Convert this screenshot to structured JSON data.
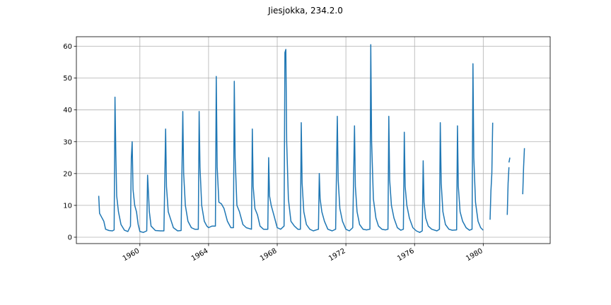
{
  "chart_data": {
    "type": "line",
    "title": "Jiesjokka, 234.2.0",
    "xlabel": "",
    "ylabel": "",
    "x_ticks": [
      "1960",
      "1964",
      "1968",
      "1972",
      "1976",
      "1980"
    ],
    "y_ticks": [
      "0",
      "10",
      "20",
      "30",
      "40",
      "50",
      "60"
    ],
    "xlim": [
      1956.3,
      1983.9
    ],
    "ylim": [
      -2,
      63
    ],
    "grid": true,
    "line_color": "#1f77b4",
    "series": [
      {
        "segments": [
          [
            [
              1957.6,
              13
            ],
            [
              1957.65,
              7.5
            ],
            [
              1957.75,
              6.5
            ],
            [
              1957.9,
              5.0
            ],
            [
              1958.0,
              2.5
            ],
            [
              1958.2,
              2.1
            ],
            [
              1958.4,
              2.0
            ],
            [
              1958.5,
              2.3
            ],
            [
              1958.55,
              44
            ],
            [
              1958.6,
              26
            ],
            [
              1958.65,
              13
            ],
            [
              1958.75,
              8
            ],
            [
              1958.9,
              4
            ],
            [
              1959.1,
              2.2
            ],
            [
              1959.3,
              1.8
            ],
            [
              1959.45,
              3.5
            ],
            [
              1959.5,
              25
            ],
            [
              1959.55,
              30
            ],
            [
              1959.6,
              15
            ],
            [
              1959.7,
              10
            ],
            [
              1959.8,
              8
            ],
            [
              1959.9,
              4
            ],
            [
              1960.0,
              1.8
            ],
            [
              1960.2,
              1.5
            ],
            [
              1960.4,
              2.0
            ],
            [
              1960.45,
              19.5
            ],
            [
              1960.55,
              8
            ],
            [
              1960.65,
              3.5
            ],
            [
              1960.9,
              2.1
            ],
            [
              1961.2,
              2.0
            ],
            [
              1961.4,
              2.0
            ],
            [
              1961.5,
              34
            ],
            [
              1961.55,
              16
            ],
            [
              1961.65,
              8
            ],
            [
              1961.8,
              5.5
            ],
            [
              1961.95,
              3
            ],
            [
              1962.2,
              2.0
            ],
            [
              1962.4,
              2.1
            ],
            [
              1962.5,
              39.5
            ],
            [
              1962.55,
              20
            ],
            [
              1962.65,
              10
            ],
            [
              1962.8,
              5
            ],
            [
              1963.0,
              3
            ],
            [
              1963.2,
              2.5
            ],
            [
              1963.4,
              2.5
            ],
            [
              1963.45,
              39.5
            ],
            [
              1963.5,
              22
            ],
            [
              1963.6,
              10
            ],
            [
              1963.75,
              5
            ],
            [
              1963.9,
              3.5
            ],
            [
              1964.0,
              3
            ],
            [
              1964.2,
              3.5
            ],
            [
              1964.4,
              3.5
            ],
            [
              1964.45,
              50.5
            ],
            [
              1964.5,
              22
            ],
            [
              1964.6,
              11
            ],
            [
              1964.75,
              10.5
            ],
            [
              1964.9,
              9
            ],
            [
              1965.1,
              5
            ],
            [
              1965.3,
              3
            ],
            [
              1965.45,
              3
            ],
            [
              1965.5,
              49
            ],
            [
              1965.55,
              25
            ],
            [
              1965.65,
              10
            ],
            [
              1965.8,
              8
            ],
            [
              1966.0,
              4
            ],
            [
              1966.2,
              3
            ],
            [
              1966.5,
              2.5
            ],
            [
              1966.55,
              34
            ],
            [
              1966.6,
              16
            ],
            [
              1966.7,
              9
            ],
            [
              1966.85,
              7
            ],
            [
              1967.0,
              3.5
            ],
            [
              1967.2,
              2.5
            ],
            [
              1967.45,
              2.5
            ],
            [
              1967.5,
              25
            ],
            [
              1967.55,
              13
            ],
            [
              1967.65,
              10
            ],
            [
              1967.8,
              7
            ],
            [
              1968.0,
              3
            ],
            [
              1968.2,
              2.5
            ],
            [
              1968.4,
              3.5
            ],
            [
              1968.45,
              58
            ],
            [
              1968.5,
              59
            ],
            [
              1968.55,
              30
            ],
            [
              1968.65,
              12
            ],
            [
              1968.8,
              5
            ],
            [
              1969.0,
              3.5
            ],
            [
              1969.2,
              2.5
            ],
            [
              1969.35,
              2.5
            ],
            [
              1969.4,
              36
            ],
            [
              1969.45,
              17
            ],
            [
              1969.55,
              8
            ],
            [
              1969.7,
              4
            ],
            [
              1969.9,
              2.5
            ],
            [
              1970.1,
              2.0
            ],
            [
              1970.4,
              2.5
            ],
            [
              1970.45,
              20
            ],
            [
              1970.5,
              12
            ],
            [
              1970.6,
              8
            ],
            [
              1970.75,
              5
            ],
            [
              1970.95,
              2.5
            ],
            [
              1971.2,
              2.0
            ],
            [
              1971.4,
              2.5
            ],
            [
              1971.5,
              38
            ],
            [
              1971.55,
              18
            ],
            [
              1971.65,
              9
            ],
            [
              1971.8,
              5
            ],
            [
              1972.0,
              2.5
            ],
            [
              1972.2,
              2.0
            ],
            [
              1972.4,
              3
            ],
            [
              1972.5,
              35
            ],
            [
              1972.55,
              16
            ],
            [
              1972.65,
              8
            ],
            [
              1972.8,
              4
            ],
            [
              1973.0,
              2.5
            ],
            [
              1973.2,
              2.3
            ],
            [
              1973.4,
              2.5
            ],
            [
              1973.45,
              60.5
            ],
            [
              1973.5,
              30
            ],
            [
              1973.6,
              12
            ],
            [
              1973.75,
              6
            ],
            [
              1973.9,
              3.5
            ],
            [
              1974.1,
              2.5
            ],
            [
              1974.3,
              2.3
            ],
            [
              1974.45,
              2.5
            ],
            [
              1974.5,
              38
            ],
            [
              1974.55,
              18
            ],
            [
              1974.65,
              10
            ],
            [
              1974.8,
              6
            ],
            [
              1975.0,
              3
            ],
            [
              1975.2,
              2.2
            ],
            [
              1975.35,
              2.5
            ],
            [
              1975.4,
              33
            ],
            [
              1975.45,
              16
            ],
            [
              1975.55,
              10
            ],
            [
              1975.7,
              6
            ],
            [
              1975.9,
              3
            ],
            [
              1976.1,
              2.0
            ],
            [
              1976.3,
              1.5
            ],
            [
              1976.45,
              2.0
            ],
            [
              1976.5,
              24
            ],
            [
              1976.55,
              11
            ],
            [
              1976.65,
              6
            ],
            [
              1976.8,
              3.5
            ],
            [
              1977.0,
              2.5
            ],
            [
              1977.3,
              2.0
            ],
            [
              1977.45,
              2.5
            ],
            [
              1977.5,
              36
            ],
            [
              1977.55,
              17
            ],
            [
              1977.65,
              8
            ],
            [
              1977.8,
              4
            ],
            [
              1978.0,
              2.5
            ],
            [
              1978.2,
              2.2
            ],
            [
              1978.45,
              2.3
            ],
            [
              1978.5,
              35
            ],
            [
              1978.55,
              16
            ],
            [
              1978.65,
              8
            ],
            [
              1978.8,
              5
            ],
            [
              1979.0,
              3
            ],
            [
              1979.2,
              2.2
            ],
            [
              1979.35,
              2.5
            ],
            [
              1979.4,
              54.5
            ],
            [
              1979.45,
              25
            ],
            [
              1979.55,
              11
            ],
            [
              1979.7,
              5
            ],
            [
              1979.85,
              3
            ],
            [
              1980.0,
              2.2
            ]
          ],
          [
            [
              1980.4,
              5.5
            ],
            [
              1980.45,
              14.5
            ],
            [
              1980.5,
              20
            ],
            [
              1980.55,
              36
            ]
          ],
          [
            [
              1981.4,
              7
            ],
            [
              1981.45,
              17
            ],
            [
              1981.5,
              22
            ]
          ],
          [
            [
              1981.5,
              23.5
            ],
            [
              1981.55,
              25
            ]
          ],
          [
            [
              1982.3,
              13.5
            ],
            [
              1982.35,
              22
            ],
            [
              1982.4,
              28
            ]
          ]
        ]
      }
    ]
  }
}
